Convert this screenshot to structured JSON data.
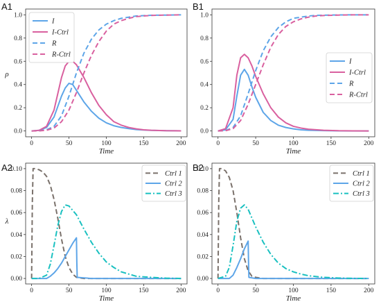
{
  "chart_data": [
    {
      "panel": "A1",
      "type": "line",
      "xlabel": "Time",
      "ylabel": "ρ",
      "xlim": [
        -8,
        208
      ],
      "ylim": [
        -0.05,
        1.05
      ],
      "xticks": [
        0,
        50,
        100,
        150,
        200
      ],
      "yticks": [
        0.0,
        0.2,
        0.4,
        0.6,
        0.8,
        1.0
      ],
      "ytick_labels": [
        "0.0",
        "0.2",
        "0.4",
        "0.6",
        "0.8",
        "1.0"
      ],
      "legend": "top-left",
      "grid": false,
      "series": [
        {
          "name": "I",
          "color": "#5da5e8",
          "dash": "solid",
          "x": [
            0,
            10,
            20,
            30,
            40,
            45,
            50,
            55,
            60,
            70,
            80,
            90,
            100,
            110,
            120,
            130,
            140,
            150,
            160,
            180,
            200
          ],
          "y": [
            0,
            0.005,
            0.03,
            0.12,
            0.3,
            0.37,
            0.41,
            0.4,
            0.35,
            0.25,
            0.17,
            0.11,
            0.07,
            0.045,
            0.03,
            0.02,
            0.012,
            0.008,
            0.005,
            0.002,
            0.001
          ]
        },
        {
          "name": "I-Ctrl",
          "color": "#d9609f",
          "dash": "solid",
          "x": [
            0,
            10,
            20,
            30,
            40,
            45,
            50,
            55,
            60,
            70,
            80,
            90,
            100,
            110,
            120,
            130,
            140,
            150,
            160,
            180,
            200
          ],
          "y": [
            0,
            0.005,
            0.04,
            0.18,
            0.46,
            0.56,
            0.6,
            0.6,
            0.57,
            0.46,
            0.33,
            0.22,
            0.14,
            0.08,
            0.05,
            0.03,
            0.018,
            0.01,
            0.006,
            0.002,
            0.001
          ]
        },
        {
          "name": "R",
          "color": "#5da5e8",
          "dash": "dashed",
          "x": [
            0,
            10,
            20,
            30,
            40,
            50,
            60,
            70,
            80,
            90,
            100,
            110,
            120,
            130,
            140,
            150,
            160,
            180,
            200
          ],
          "y": [
            0,
            0.002,
            0.01,
            0.04,
            0.13,
            0.3,
            0.5,
            0.67,
            0.79,
            0.87,
            0.92,
            0.95,
            0.97,
            0.98,
            0.99,
            0.993,
            0.996,
            0.998,
            1.0
          ]
        },
        {
          "name": "R-Ctrl",
          "color": "#d9609f",
          "dash": "dashed",
          "x": [
            0,
            10,
            20,
            30,
            40,
            50,
            60,
            70,
            80,
            90,
            100,
            110,
            120,
            130,
            140,
            150,
            160,
            180,
            200
          ],
          "y": [
            0,
            0.001,
            0.006,
            0.025,
            0.08,
            0.18,
            0.33,
            0.5,
            0.65,
            0.77,
            0.86,
            0.92,
            0.95,
            0.97,
            0.985,
            0.99,
            0.995,
            0.998,
            1.0
          ]
        }
      ]
    },
    {
      "panel": "B1",
      "type": "line",
      "xlabel": "Time",
      "ylabel": "",
      "xlim": [
        -8,
        208
      ],
      "ylim": [
        -0.05,
        1.05
      ],
      "xticks": [
        0,
        50,
        100,
        150,
        200
      ],
      "yticks": [
        0.0,
        0.2,
        0.4,
        0.6,
        0.8,
        1.0
      ],
      "ytick_labels": [
        "0.0",
        "0.2",
        "0.4",
        "0.6",
        "0.8",
        "1.0"
      ],
      "legend": "center-right",
      "grid": false,
      "series": [
        {
          "name": "I",
          "color": "#5da5e8",
          "dash": "solid",
          "x": [
            0,
            10,
            20,
            25,
            30,
            35,
            40,
            45,
            50,
            60,
            70,
            80,
            90,
            100,
            110,
            120,
            140,
            160,
            180,
            200
          ],
          "y": [
            0,
            0.01,
            0.1,
            0.3,
            0.48,
            0.53,
            0.48,
            0.38,
            0.29,
            0.16,
            0.09,
            0.05,
            0.03,
            0.018,
            0.01,
            0.006,
            0.003,
            0.001,
            0.0,
            0.0
          ]
        },
        {
          "name": "I-Ctrl",
          "color": "#d9609f",
          "dash": "solid",
          "x": [
            0,
            10,
            20,
            25,
            30,
            35,
            40,
            45,
            50,
            60,
            70,
            80,
            90,
            100,
            110,
            120,
            140,
            160,
            180,
            200
          ],
          "y": [
            0,
            0.02,
            0.2,
            0.48,
            0.63,
            0.66,
            0.63,
            0.56,
            0.47,
            0.32,
            0.2,
            0.12,
            0.07,
            0.04,
            0.025,
            0.015,
            0.006,
            0.002,
            0.001,
            0.0
          ]
        },
        {
          "name": "R",
          "color": "#5da5e8",
          "dash": "dashed",
          "x": [
            0,
            10,
            20,
            30,
            40,
            50,
            60,
            70,
            80,
            90,
            100,
            110,
            120,
            130,
            140,
            160,
            180,
            200
          ],
          "y": [
            0,
            0.003,
            0.03,
            0.13,
            0.32,
            0.52,
            0.69,
            0.81,
            0.89,
            0.94,
            0.97,
            0.98,
            0.99,
            0.995,
            0.997,
            0.999,
            1.0,
            1.0
          ]
        },
        {
          "name": "R-Ctrl",
          "color": "#d9609f",
          "dash": "dashed",
          "x": [
            0,
            10,
            20,
            30,
            40,
            50,
            60,
            70,
            80,
            90,
            100,
            110,
            120,
            130,
            140,
            160,
            180,
            200
          ],
          "y": [
            0,
            0.002,
            0.02,
            0.09,
            0.23,
            0.4,
            0.57,
            0.72,
            0.83,
            0.9,
            0.94,
            0.965,
            0.98,
            0.99,
            0.994,
            0.998,
            1.0,
            1.0
          ]
        }
      ]
    },
    {
      "panel": "A2",
      "type": "line",
      "xlabel": "Time",
      "ylabel": "λ",
      "xlim": [
        -8,
        208
      ],
      "ylim": [
        -0.005,
        0.105
      ],
      "xticks": [
        0,
        50,
        100,
        150,
        200
      ],
      "yticks": [
        0.0,
        0.02,
        0.04,
        0.06,
        0.08,
        0.1
      ],
      "ytick_labels": [
        "0.00",
        "0.02",
        "0.04",
        "0.06",
        "0.08",
        "0.10"
      ],
      "legend": "top-right",
      "grid": false,
      "series": [
        {
          "name": "Ctrl 1",
          "color": "#7a716b",
          "dash": "dashed",
          "x": [
            0,
            1,
            2,
            5,
            10,
            15,
            20,
            25,
            30,
            35,
            40,
            45,
            50,
            55,
            60,
            70,
            80,
            100,
            200
          ],
          "y": [
            0,
            0.07,
            0.1,
            0.1,
            0.099,
            0.097,
            0.093,
            0.085,
            0.072,
            0.055,
            0.036,
            0.02,
            0.01,
            0.004,
            0.001,
            0.0,
            0.0,
            0.0,
            0.0
          ]
        },
        {
          "name": "Ctrl 2",
          "color": "#5da5e8",
          "dash": "solid",
          "x": [
            0,
            20,
            25,
            30,
            35,
            40,
            45,
            50,
            55,
            60,
            60.5,
            61,
            70,
            80,
            100,
            200
          ],
          "y": [
            0,
            0.0,
            0.002,
            0.005,
            0.009,
            0.014,
            0.02,
            0.026,
            0.032,
            0.037,
            0.015,
            0.001,
            0.0005,
            0.0,
            0.0,
            0.0
          ]
        },
        {
          "name": "Ctrl 3",
          "color": "#19c0c0",
          "dash": "dashdot",
          "x": [
            0,
            10,
            20,
            25,
            30,
            35,
            40,
            45,
            50,
            55,
            60,
            70,
            80,
            90,
            100,
            110,
            120,
            140,
            160,
            180,
            200
          ],
          "y": [
            0,
            0.0,
            0.003,
            0.013,
            0.03,
            0.048,
            0.061,
            0.067,
            0.066,
            0.062,
            0.058,
            0.045,
            0.033,
            0.023,
            0.015,
            0.01,
            0.006,
            0.002,
            0.001,
            0.0003,
            0.0
          ]
        }
      ]
    },
    {
      "panel": "B2",
      "type": "line",
      "xlabel": "Time",
      "ylabel": "",
      "xlim": [
        -8,
        208
      ],
      "ylim": [
        -0.005,
        0.105
      ],
      "xticks": [
        0,
        50,
        100,
        150,
        200
      ],
      "yticks": [
        0.0,
        0.02,
        0.04,
        0.06,
        0.08,
        0.1
      ],
      "ytick_labels": [
        "0.00",
        "0.02",
        "0.04",
        "0.06",
        "0.08",
        "0.10"
      ],
      "legend": "top-right",
      "grid": false,
      "series": [
        {
          "name": "Ctrl 1",
          "color": "#7a716b",
          "dash": "dashed",
          "x": [
            0,
            1,
            2,
            5,
            10,
            15,
            20,
            25,
            30,
            35,
            40,
            45,
            50,
            60,
            100,
            200
          ],
          "y": [
            0,
            0.07,
            0.1,
            0.1,
            0.098,
            0.092,
            0.08,
            0.06,
            0.037,
            0.018,
            0.007,
            0.002,
            0.001,
            0.0,
            0.0,
            0.0
          ]
        },
        {
          "name": "Ctrl 2",
          "color": "#5da5e8",
          "dash": "solid",
          "x": [
            0,
            15,
            20,
            25,
            30,
            35,
            40,
            40.5,
            41,
            50,
            100,
            200
          ],
          "y": [
            0,
            0.0,
            0.003,
            0.01,
            0.018,
            0.027,
            0.034,
            0.015,
            0.001,
            0.0,
            0.0,
            0.0
          ]
        },
        {
          "name": "Ctrl 3",
          "color": "#19c0c0",
          "dash": "dashdot",
          "x": [
            0,
            10,
            15,
            20,
            25,
            30,
            35,
            40,
            45,
            50,
            60,
            70,
            80,
            90,
            100,
            110,
            120,
            140,
            160,
            180,
            200
          ],
          "y": [
            0,
            0.002,
            0.01,
            0.03,
            0.052,
            0.064,
            0.067,
            0.063,
            0.055,
            0.047,
            0.033,
            0.022,
            0.014,
            0.009,
            0.006,
            0.004,
            0.0025,
            0.001,
            0.0004,
            0.0001,
            0.0
          ]
        }
      ]
    }
  ]
}
